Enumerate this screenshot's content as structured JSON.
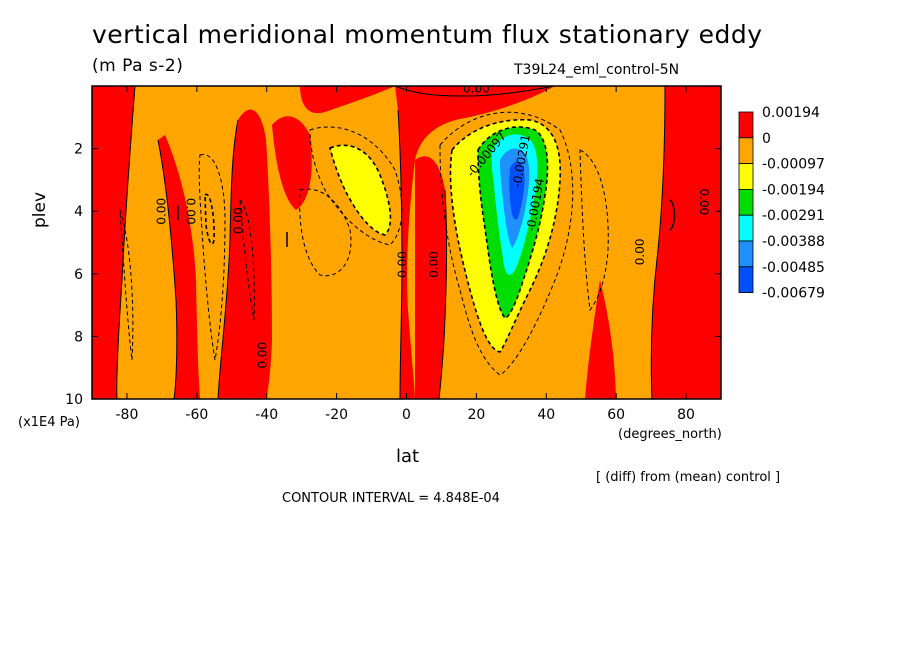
{
  "header": {
    "title": "vertical meridional momentum flux stationary eddy",
    "units": "(m Pa s-2)",
    "dataset": "T39L24_eml_control-5N"
  },
  "footer": {
    "diff_note": "[ (diff) from (mean) control ]",
    "contour_interval": "CONTOUR INTERVAL = 4.848E-04"
  },
  "colors": {
    "red": "#ff0000",
    "orange": "#ffa500",
    "yellow": "#ffff00",
    "green": "#00dd00",
    "cyan": "#00ffff",
    "lightblue": "#1e90ff",
    "blue": "#0050ff"
  },
  "chart_data": {
    "type": "contour",
    "xlabel": "lat",
    "xunit": "(degrees_north)",
    "ylabel": "plev",
    "yunit": "(x1E4 Pa)",
    "xlim": [
      -90,
      90
    ],
    "ylim": [
      10,
      0
    ],
    "xticks": [
      -80,
      -60,
      -40,
      -20,
      0,
      20,
      40,
      60,
      80
    ],
    "yticks": [
      2,
      4,
      6,
      8,
      10
    ],
    "colorbar": {
      "labels": [
        "0.00194",
        "0",
        "-0.00097",
        "-0.00194",
        "-0.00291",
        "-0.00388",
        "-0.00485",
        "-0.00679"
      ],
      "colors": [
        "#ff0000",
        "#ffa500",
        "#ffff00",
        "#00dd00",
        "#00ffff",
        "#1e90ff",
        "#0050ff"
      ]
    },
    "contour_labels": [
      {
        "text": "0.00",
        "lat": -70,
        "plev": 4.0,
        "rotate": -90
      },
      {
        "text": "0.00",
        "lat": -62,
        "plev": 4.0,
        "rotate": 90
      },
      {
        "text": "0.00",
        "lat": -48,
        "plev": 4.3,
        "rotate": -90
      },
      {
        "text": "0.00",
        "lat": -41,
        "plev": 8.6,
        "rotate": -90
      },
      {
        "text": "0.00",
        "lat": -1,
        "plev": 5.7,
        "rotate": -90
      },
      {
        "text": "0.00",
        "lat": 8,
        "plev": 5.7,
        "rotate": -90
      },
      {
        "text": "0.00",
        "lat": 20,
        "plev": 0.1,
        "rotate": 0
      },
      {
        "text": "-0.00097",
        "lat": 23,
        "plev": 2.2,
        "rotate": -50
      },
      {
        "text": "-0.00194",
        "lat": 37,
        "plev": 3.8,
        "rotate": -80
      },
      {
        "text": "-0.00291",
        "lat": 33,
        "plev": 2.4,
        "rotate": -80
      },
      {
        "text": "0.00",
        "lat": 67,
        "plev": 5.3,
        "rotate": -90
      },
      {
        "text": "0.00",
        "lat": 85,
        "plev": 3.7,
        "rotate": 90
      }
    ]
  }
}
